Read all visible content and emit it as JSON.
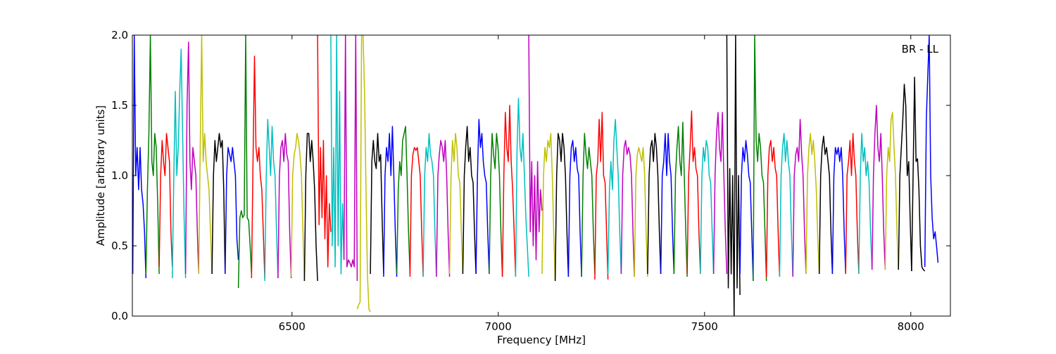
{
  "chart_data": {
    "type": "line",
    "title": "",
    "annotation": "BR - LL",
    "xlabel": "Frequency [MHz]",
    "ylabel": "Amplitude [arbitrary units]",
    "xlim": [
      6113,
      8096
    ],
    "ylim": [
      0.0,
      2.0
    ],
    "xticks": [
      6500,
      7000,
      7500,
      8000
    ],
    "xtick_labels": [
      "6500",
      "7000",
      "7500",
      "8000"
    ],
    "yticks": [
      0.0,
      0.5,
      1.0,
      1.5,
      2.0
    ],
    "ytick_labels": [
      "0.0",
      "0.5",
      "1.0",
      "1.5",
      "2.0"
    ],
    "grid": false,
    "colors": {
      "b": "#0000ff",
      "g": "#008000",
      "r": "#ff0000",
      "c": "#00bfbf",
      "m": "#bf00bf",
      "y": "#bfbf00",
      "k": "#000000",
      "gray": "#c0c0c0"
    },
    "windows": [
      {
        "f": [
          6114,
          6146
        ],
        "c": "b",
        "y": [
          0.3,
          2.0,
          1.0,
          1.2,
          0.9,
          1.2,
          0.9,
          0.8,
          0.6,
          0.27
        ]
      },
      {
        "f": [
          6146,
          6178
        ],
        "c": "g",
        "y": [
          0.3,
          0.9,
          1.3,
          2.0,
          1.1,
          1.0,
          1.3,
          1.2,
          0.8,
          0.3
        ]
      },
      {
        "f": [
          6178,
          6210
        ],
        "c": "r",
        "y": [
          0.35,
          1.0,
          1.25,
          1.1,
          1.0,
          1.3,
          1.2,
          1.1,
          0.6,
          0.35
        ]
      },
      {
        "f": [
          6210,
          6242
        ],
        "c": "c",
        "y": [
          0.27,
          1.0,
          1.6,
          1.0,
          1.2,
          1.6,
          1.9,
          1.3,
          0.7,
          0.27
        ]
      },
      {
        "f": [
          6242,
          6274
        ],
        "c": "m",
        "y": [
          0.3,
          1.5,
          1.95,
          1.1,
          0.9,
          1.2,
          1.1,
          1.0,
          0.6,
          0.3
        ]
      },
      {
        "f": [
          6274,
          6306
        ],
        "c": "y",
        "y": [
          0.3,
          1.2,
          2.0,
          1.1,
          1.3,
          1.1,
          1.0,
          0.9,
          0.6,
          0.3
        ]
      },
      {
        "f": [
          6306,
          6338
        ],
        "c": "k",
        "y": [
          0.3,
          1.0,
          1.25,
          1.1,
          1.2,
          1.3,
          1.2,
          1.25,
          0.9,
          0.3
        ]
      },
      {
        "f": [
          6338,
          6370
        ],
        "c": "b",
        "y": [
          0.3,
          1.0,
          1.2,
          1.15,
          1.1,
          1.2,
          1.1,
          1.0,
          0.55,
          0.4
        ]
      },
      {
        "f": [
          6370,
          6402
        ],
        "c": "g",
        "y": [
          0.2,
          0.7,
          0.75,
          0.7,
          0.72,
          2.0,
          0.7,
          0.68,
          0.5,
          0.3
        ]
      },
      {
        "f": [
          6402,
          6434
        ],
        "c": "r",
        "y": [
          0.27,
          1.1,
          1.85,
          1.2,
          1.1,
          1.2,
          1.0,
          0.9,
          0.6,
          0.27
        ]
      },
      {
        "f": [
          6434,
          6466
        ],
        "c": "c",
        "y": [
          0.25,
          1.0,
          1.4,
          1.2,
          1.0,
          1.35,
          1.1,
          1.0,
          0.6,
          0.27
        ]
      },
      {
        "f": [
          6466,
          6498
        ],
        "c": "m",
        "y": [
          0.27,
          1.0,
          1.2,
          1.25,
          1.1,
          1.3,
          1.15,
          1.1,
          0.6,
          0.27
        ]
      },
      {
        "f": [
          6498,
          6530
        ],
        "c": "y",
        "y": [
          0.28,
          1.0,
          1.15,
          1.2,
          1.3,
          1.25,
          1.15,
          1.0,
          0.6,
          0.25
        ]
      },
      {
        "f": [
          6530,
          6562
        ],
        "c": "k",
        "y": [
          0.25,
          1.0,
          1.3,
          1.3,
          1.1,
          1.25,
          1.1,
          0.9,
          0.5,
          0.25
        ]
      },
      {
        "f": [
          6562,
          6594
        ],
        "c": "r",
        "y": [
          2.0,
          0.65,
          1.2,
          0.7,
          1.25,
          0.55,
          1.0,
          0.35,
          0.8,
          0.6
        ]
      },
      {
        "f": [
          6594,
          6626
        ],
        "c": "c",
        "y": [
          2.0,
          0.5,
          1.2,
          0.35,
          2.0,
          0.5,
          1.6,
          0.3,
          0.8,
          0.4
        ]
      },
      {
        "f": [
          6626,
          6658
        ],
        "c": "m",
        "y": [
          0.4,
          2.0,
          0.35,
          0.4,
          0.38,
          0.35,
          0.4,
          0.35,
          2.0,
          0.25
        ]
      },
      {
        "f": [
          6658,
          6690
        ],
        "c": "y",
        "y": [
          0.05,
          0.08,
          0.1,
          2.0,
          2.0,
          1.6,
          0.9,
          0.3,
          0.05,
          0.03
        ]
      },
      {
        "f": [
          6690,
          6722
        ],
        "c": "k",
        "y": [
          0.3,
          1.1,
          1.25,
          1.1,
          1.05,
          1.3,
          1.1,
          1.15,
          0.7,
          0.3
        ]
      },
      {
        "f": [
          6722,
          6754
        ],
        "c": "b",
        "y": [
          0.28,
          1.0,
          1.2,
          1.1,
          1.3,
          1.0,
          1.35,
          1.0,
          0.6,
          0.28
        ]
      },
      {
        "f": [
          6754,
          6786
        ],
        "c": "g",
        "y": [
          0.3,
          0.9,
          1.1,
          1.0,
          1.25,
          1.3,
          1.35,
          1.0,
          0.6,
          0.3
        ]
      },
      {
        "f": [
          6786,
          6818
        ],
        "c": "r",
        "y": [
          0.28,
          1.0,
          1.15,
          1.2,
          1.18,
          1.2,
          1.1,
          1.0,
          0.6,
          0.28
        ]
      },
      {
        "f": [
          6818,
          6850
        ],
        "c": "c",
        "y": [
          0.28,
          1.0,
          1.2,
          1.1,
          1.3,
          1.15,
          1.1,
          1.0,
          0.6,
          0.28
        ]
      },
      {
        "f": [
          6850,
          6882
        ],
        "c": "m",
        "y": [
          0.28,
          1.0,
          1.15,
          1.25,
          1.2,
          1.1,
          1.25,
          1.0,
          0.6,
          0.28
        ]
      },
      {
        "f": [
          6882,
          6914
        ],
        "c": "y",
        "y": [
          0.3,
          1.0,
          1.25,
          1.1,
          1.3,
          1.2,
          1.0,
          0.95,
          0.6,
          0.3
        ]
      },
      {
        "f": [
          6914,
          6946
        ],
        "c": "k",
        "y": [
          0.3,
          1.0,
          1.2,
          1.35,
          1.1,
          1.2,
          1.0,
          0.95,
          0.6,
          0.3
        ]
      },
      {
        "f": [
          6946,
          6978
        ],
        "c": "b",
        "y": [
          0.3,
          1.0,
          1.4,
          1.2,
          1.3,
          1.1,
          1.0,
          0.95,
          0.6,
          0.3
        ]
      },
      {
        "f": [
          6978,
          7010
        ],
        "c": "g",
        "y": [
          0.3,
          1.0,
          1.3,
          1.15,
          1.05,
          1.3,
          1.2,
          1.0,
          0.6,
          0.28
        ]
      },
      {
        "f": [
          7010,
          7042
        ],
        "c": "r",
        "y": [
          0.28,
          1.0,
          1.45,
          1.2,
          1.1,
          1.5,
          1.1,
          0.9,
          0.6,
          0.28
        ]
      },
      {
        "f": [
          7042,
          7074
        ],
        "c": "c",
        "y": [
          0.28,
          1.2,
          1.55,
          1.2,
          1.1,
          1.3,
          1.0,
          0.7,
          0.5,
          0.28
        ]
      },
      {
        "f": [
          7074,
          7106
        ],
        "c": "m",
        "y": [
          2.0,
          0.6,
          1.1,
          0.5,
          1.0,
          0.4,
          1.1,
          0.6,
          0.9,
          0.75
        ]
      },
      {
        "f": [
          7106,
          7138
        ],
        "c": "y",
        "y": [
          0.3,
          1.0,
          1.2,
          1.1,
          1.25,
          1.2,
          1.3,
          1.0,
          0.6,
          0.25
        ]
      },
      {
        "f": [
          7138,
          7170
        ],
        "c": "k",
        "y": [
          0.25,
          1.0,
          1.3,
          1.25,
          1.1,
          1.3,
          1.2,
          1.0,
          0.6,
          0.28
        ]
      },
      {
        "f": [
          7170,
          7202
        ],
        "c": "b",
        "y": [
          0.28,
          1.0,
          1.2,
          1.25,
          1.1,
          1.2,
          1.05,
          1.0,
          0.6,
          0.28
        ]
      },
      {
        "f": [
          7202,
          7234
        ],
        "c": "g",
        "y": [
          0.28,
          1.0,
          1.3,
          1.15,
          1.05,
          1.2,
          1.1,
          1.0,
          0.6,
          0.3
        ]
      },
      {
        "f": [
          7234,
          7266
        ],
        "c": "r",
        "y": [
          0.26,
          1.0,
          1.1,
          1.4,
          1.1,
          1.45,
          1.0,
          0.95,
          0.6,
          0.26
        ]
      },
      {
        "f": [
          7266,
          7298
        ],
        "c": "c",
        "y": [
          0.3,
          0.9,
          1.1,
          0.9,
          1.25,
          1.4,
          1.2,
          1.0,
          0.6,
          0.3
        ]
      },
      {
        "f": [
          7298,
          7330
        ],
        "c": "m",
        "y": [
          0.3,
          1.0,
          1.2,
          1.25,
          1.15,
          1.2,
          1.15,
          1.0,
          0.6,
          0.28
        ]
      },
      {
        "f": [
          7330,
          7362
        ],
        "c": "y",
        "y": [
          0.28,
          1.0,
          1.15,
          1.2,
          1.15,
          1.1,
          1.2,
          1.0,
          0.6,
          0.28
        ]
      },
      {
        "f": [
          7362,
          7394
        ],
        "c": "k",
        "y": [
          0.3,
          1.0,
          1.2,
          1.25,
          1.1,
          1.3,
          1.2,
          1.0,
          0.6,
          0.3
        ]
      },
      {
        "f": [
          7394,
          7426
        ],
        "c": "b",
        "y": [
          0.3,
          1.0,
          1.1,
          1.3,
          1.0,
          1.3,
          1.1,
          1.0,
          0.6,
          0.3
        ]
      },
      {
        "f": [
          7426,
          7458
        ],
        "c": "g",
        "y": [
          0.3,
          1.0,
          1.2,
          1.35,
          1.1,
          1.0,
          1.38,
          1.0,
          0.6,
          0.28
        ]
      },
      {
        "f": [
          7458,
          7490
        ],
        "c": "r",
        "y": [
          0.3,
          1.0,
          1.2,
          1.46,
          1.1,
          1.2,
          1.05,
          1.0,
          0.6,
          0.3
        ]
      },
      {
        "f": [
          7490,
          7522
        ],
        "c": "c",
        "y": [
          0.3,
          1.0,
          1.2,
          1.1,
          1.25,
          1.2,
          1.0,
          0.95,
          0.6,
          0.3
        ]
      },
      {
        "f": [
          7522,
          7554
        ],
        "c": "m",
        "y": [
          0.3,
          1.0,
          1.3,
          1.45,
          1.2,
          1.1,
          1.45,
          1.0,
          0.6,
          0.3
        ]
      },
      {
        "f": [
          7554,
          7586
        ],
        "c": "k",
        "y": [
          2.0,
          0.2,
          1.05,
          0.3,
          1.0,
          0.0,
          2.0,
          0.2,
          1.0,
          0.15
        ]
      },
      {
        "f": [
          7586,
          7618
        ],
        "c": "b",
        "y": [
          0.3,
          1.0,
          1.2,
          1.1,
          1.25,
          1.15,
          1.0,
          0.95,
          0.6,
          0.25
        ]
      },
      {
        "f": [
          7618,
          7650
        ],
        "c": "g",
        "y": [
          0.25,
          2.0,
          1.25,
          1.1,
          1.3,
          1.2,
          1.0,
          0.95,
          0.6,
          0.25
        ]
      },
      {
        "f": [
          7650,
          7682
        ],
        "c": "r",
        "y": [
          0.28,
          1.0,
          1.2,
          1.25,
          1.1,
          1.2,
          1.05,
          1.0,
          0.6,
          0.28
        ]
      },
      {
        "f": [
          7682,
          7714
        ],
        "c": "c",
        "y": [
          0.28,
          1.0,
          1.2,
          1.3,
          1.1,
          1.25,
          1.1,
          1.0,
          0.6,
          0.28
        ]
      },
      {
        "f": [
          7714,
          7746
        ],
        "c": "m",
        "y": [
          0.28,
          1.0,
          1.15,
          1.2,
          1.1,
          1.4,
          1.15,
          1.0,
          0.6,
          0.3
        ]
      },
      {
        "f": [
          7746,
          7778
        ],
        "c": "y",
        "y": [
          0.3,
          1.0,
          1.2,
          1.3,
          1.15,
          1.25,
          1.1,
          0.9,
          0.55,
          0.3
        ]
      },
      {
        "f": [
          7778,
          7810
        ],
        "c": "k",
        "y": [
          0.3,
          1.0,
          1.2,
          1.28,
          1.15,
          1.2,
          1.1,
          1.0,
          0.6,
          0.3
        ]
      },
      {
        "f": [
          7810,
          7842
        ],
        "c": "b",
        "y": [
          0.3,
          1.0,
          1.2,
          1.15,
          1.2,
          1.1,
          1.2,
          1.0,
          0.6,
          0.3
        ]
      },
      {
        "f": [
          7842,
          7874
        ],
        "c": "r",
        "y": [
          0.3,
          1.0,
          1.1,
          1.25,
          1.0,
          1.3,
          1.1,
          1.0,
          0.6,
          0.3
        ]
      },
      {
        "f": [
          7874,
          7906
        ],
        "c": "c",
        "y": [
          0.3,
          1.0,
          1.3,
          1.1,
          1.2,
          1.0,
          1.1,
          0.95,
          0.6,
          0.33
        ]
      },
      {
        "f": [
          7906,
          7938
        ],
        "c": "m",
        "y": [
          0.33,
          1.0,
          1.3,
          1.5,
          1.2,
          1.1,
          1.3,
          1.0,
          0.6,
          0.33
        ]
      },
      {
        "f": [
          7938,
          7970
        ],
        "c": "y",
        "y": [
          0.33,
          1.0,
          1.2,
          1.1,
          1.4,
          1.45,
          1.2,
          1.0,
          0.6,
          0.33
        ]
      },
      {
        "f": [
          7970,
          8002
        ],
        "c": "k",
        "y": [
          0.33,
          1.0,
          1.2,
          1.4,
          1.65,
          1.5,
          1.0,
          1.1,
          0.7,
          0.32
        ]
      },
      {
        "f": [
          8002,
          8034
        ],
        "c": "k",
        "y": [
          0.32,
          1.0,
          1.7,
          1.1,
          1.12,
          0.9,
          0.5,
          0.35,
          0.33,
          0.32
        ]
      },
      {
        "f": [
          8034,
          8066
        ],
        "c": "b",
        "y": [
          0.35,
          1.4,
          1.7,
          2.0,
          1.0,
          0.7,
          0.55,
          0.6,
          0.5,
          0.38
        ]
      }
    ]
  }
}
